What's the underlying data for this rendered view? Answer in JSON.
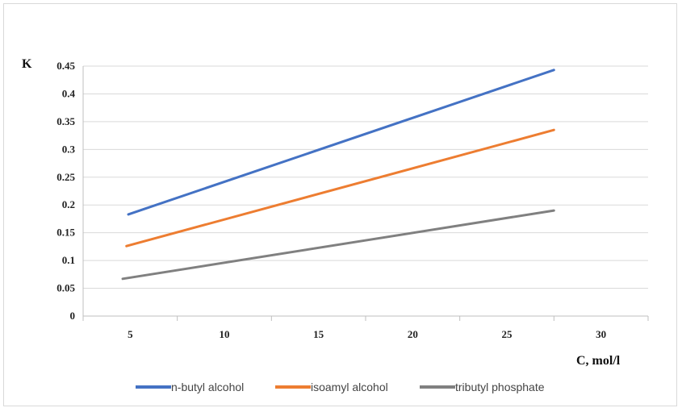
{
  "chart_data": {
    "type": "line",
    "xlabel": "C, mol/l",
    "ylabel": "K",
    "xlim": [
      2.5,
      32.5
    ],
    "ylim": [
      0,
      0.45
    ],
    "x_ticks": [
      5,
      10,
      15,
      20,
      25,
      30
    ],
    "y_ticks": [
      0,
      0.05,
      0.1,
      0.15,
      0.2,
      0.25,
      0.3,
      0.35,
      0.4,
      0.45
    ],
    "y_tick_labels": [
      "0",
      "0.05",
      "0.1",
      "0.15",
      "0.2",
      "0.25",
      "0.3",
      "0.35",
      "0.4",
      "0.45"
    ],
    "grid": "horizontal",
    "legend_position": "bottom",
    "series": [
      {
        "name": "n-butyl alcohol",
        "color": "#4472C4",
        "x": [
          4.9,
          27.5
        ],
        "y": [
          0.183,
          0.443
        ]
      },
      {
        "name": "isoamyl alcohol",
        "color": "#ED7D31",
        "x": [
          4.8,
          27.5
        ],
        "y": [
          0.126,
          0.335
        ]
      },
      {
        "name": "tributyl phosphate",
        "color": "#808080",
        "x": [
          4.6,
          27.5
        ],
        "y": [
          0.067,
          0.19
        ]
      }
    ]
  }
}
